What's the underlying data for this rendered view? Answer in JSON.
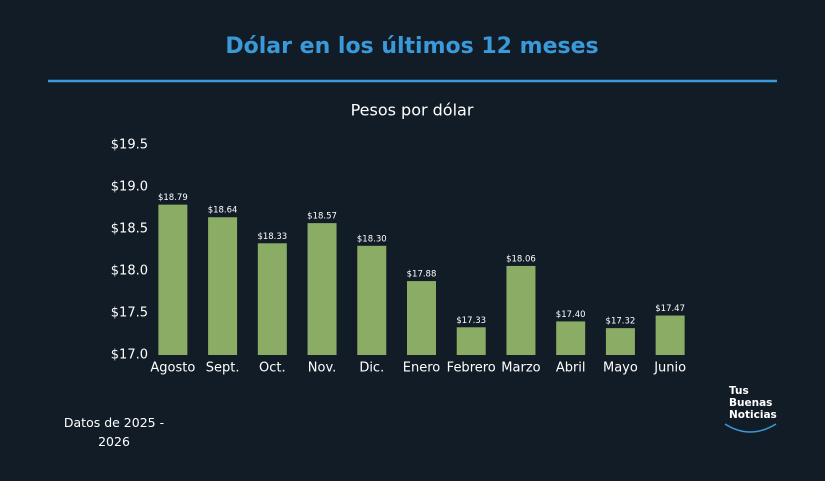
{
  "chart_data": {
    "type": "bar",
    "title": "Dólar en los últimos 12 meses",
    "subtitle": "Pesos por dólar",
    "categories": [
      "Agosto",
      "Sept.",
      "Oct.",
      "Nov.",
      "Dic.",
      "Enero",
      "Febrero",
      "Marzo",
      "Abril",
      "Mayo",
      "Junio"
    ],
    "values": [
      18.79,
      18.64,
      18.33,
      18.57,
      18.3,
      17.88,
      17.33,
      18.06,
      17.4,
      17.32,
      17.47
    ],
    "value_labels": [
      "$18.79",
      "$18.64",
      "$18.33",
      "$18.57",
      "$18.30",
      "$17.88",
      "$17.33",
      "$18.06",
      "$17.40",
      "$17.32",
      "$17.47"
    ],
    "color": "#8aac64",
    "ylim": [
      17.0,
      19.5
    ],
    "yticks": [
      {
        "value": 17.0,
        "label": "$17.0"
      },
      {
        "value": 17.5,
        "label": "$17.5"
      },
      {
        "value": 18.0,
        "label": "$18.0"
      },
      {
        "value": 18.5,
        "label": "$18.5"
      },
      {
        "value": 19.0,
        "label": "$19.0"
      },
      {
        "value": 19.5,
        "label": "$19.5"
      }
    ],
    "grid": false,
    "note": "Datos de 2025 - 2026",
    "logo": [
      "Tus",
      "Buenas",
      "Noticias"
    ]
  }
}
